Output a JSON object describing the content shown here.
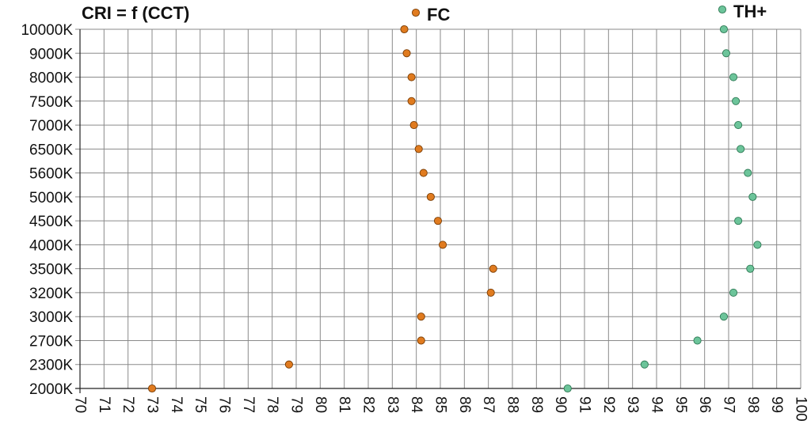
{
  "chart_data": {
    "type": "scatter",
    "title": "CRI = f (CCT)",
    "xlabel": "",
    "ylabel": "",
    "xlim": [
      70,
      100
    ],
    "x_ticks": [
      "70",
      "71",
      "72",
      "73",
      "74",
      "75",
      "76",
      "77",
      "78",
      "79",
      "80",
      "81",
      "82",
      "83",
      "84",
      "85",
      "86",
      "87",
      "88",
      "89",
      "90",
      "91",
      "92",
      "93",
      "94",
      "95",
      "96",
      "97",
      "98",
      "99",
      "100"
    ],
    "categories": [
      "2000K",
      "2300K",
      "2700K",
      "3000K",
      "3200K",
      "3500K",
      "4000K",
      "4500K",
      "5000K",
      "5600K",
      "6500K",
      "7000K",
      "7500K",
      "8000K",
      "9000K",
      "10000K"
    ],
    "grid": true,
    "legend": "top",
    "series": [
      {
        "name": "FC",
        "color": "#e07b1f",
        "edge": "#7a3d05",
        "values": [
          73.0,
          78.7,
          84.2,
          84.2,
          87.1,
          87.2,
          85.1,
          84.9,
          84.6,
          84.3,
          84.1,
          83.9,
          83.8,
          83.8,
          83.6,
          83.5
        ]
      },
      {
        "name": "TH+",
        "color": "#6cc49a",
        "edge": "#2f7a55",
        "values": [
          90.3,
          93.5,
          95.7,
          96.8,
          97.2,
          97.9,
          98.2,
          97.4,
          98.0,
          97.8,
          97.5,
          97.4,
          97.3,
          97.2,
          96.9,
          96.8
        ]
      }
    ]
  }
}
